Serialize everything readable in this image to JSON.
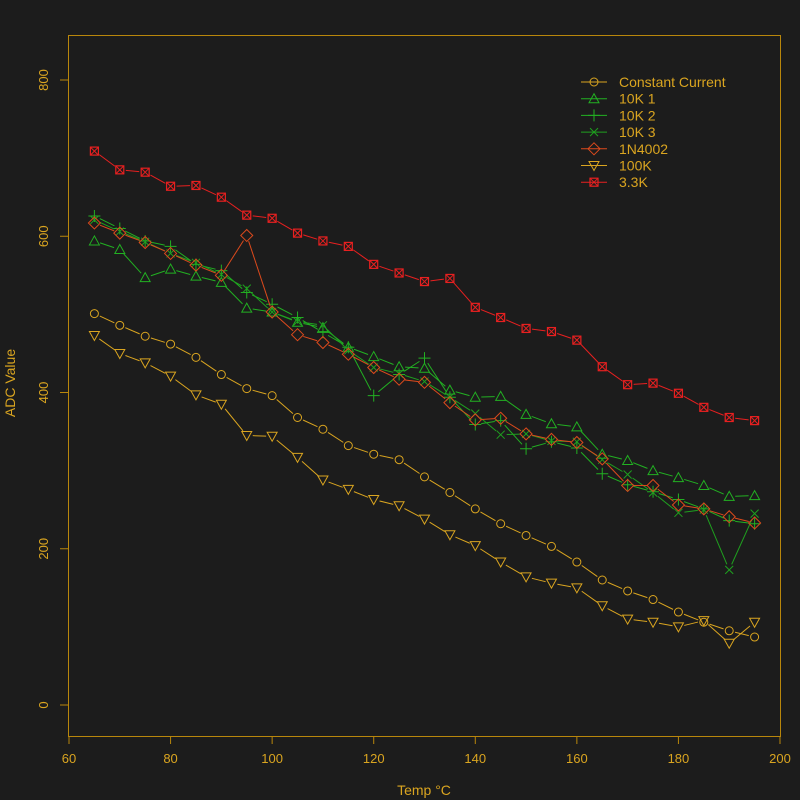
{
  "colors": {
    "background": "#1c1c1c",
    "axis": "#b8860b",
    "text": "#daa520"
  },
  "chart_data": {
    "type": "line",
    "title": "",
    "xlabel": "Temp °C",
    "ylabel": "ADC Value",
    "xlim": [
      60,
      200
    ],
    "ylim": [
      -40,
      860
    ],
    "xticks": [
      60,
      80,
      100,
      120,
      140,
      160,
      180,
      200
    ],
    "yticks": [
      0,
      200,
      400,
      600,
      800
    ],
    "xtick_labels": [
      "60",
      "80",
      "100",
      "120",
      "140",
      "160",
      "180",
      "200"
    ],
    "ytick_labels": [
      "0",
      "200",
      "400",
      "600",
      "800"
    ],
    "grid": false,
    "legend_position": "top-right",
    "x": [
      65,
      70,
      75,
      80,
      85,
      90,
      95,
      100,
      105,
      110,
      115,
      120,
      125,
      130,
      135,
      140,
      145,
      150,
      155,
      160,
      165,
      170,
      175,
      180,
      185,
      190,
      195
    ],
    "series": [
      {
        "name": "Constant Current",
        "marker": "circle",
        "color": "#daa520",
        "values": [
          501,
          486,
          472,
          462,
          445,
          423,
          405,
          396,
          368,
          353,
          332,
          321,
          314,
          292,
          272,
          251,
          232,
          217,
          203,
          183,
          160,
          146,
          135,
          119,
          106,
          95,
          87
        ]
      },
      {
        "name": "10K 1",
        "marker": "triangle-up",
        "color": "#22b022",
        "values": [
          594,
          583,
          547,
          558,
          549,
          541,
          508,
          503,
          490,
          483,
          458,
          446,
          433,
          431,
          403,
          394,
          395,
          372,
          360,
          356,
          321,
          313,
          300,
          291,
          281,
          267,
          268
        ]
      },
      {
        "name": "10K 2",
        "marker": "plus",
        "color": "#22b022",
        "values": [
          626,
          610,
          594,
          587,
          564,
          556,
          528,
          513,
          496,
          477,
          458,
          396,
          423,
          444,
          394,
          359,
          364,
          328,
          337,
          329,
          296,
          282,
          273,
          263,
          251,
          236,
          232
        ]
      },
      {
        "name": "10K 3",
        "marker": "cross",
        "color": "#1fa01f",
        "values": [
          621,
          606,
          593,
          578,
          566,
          551,
          533,
          503,
          491,
          486,
          454,
          432,
          424,
          414,
          394,
          373,
          346,
          347,
          338,
          337,
          314,
          295,
          272,
          246,
          250,
          173,
          245
        ]
      },
      {
        "name": "1N4002",
        "marker": "diamond",
        "color": "#dd4a1c",
        "values": [
          617,
          604,
          592,
          578,
          563,
          550,
          601,
          503,
          474,
          464,
          449,
          432,
          417,
          413,
          387,
          365,
          367,
          347,
          340,
          336,
          315,
          281,
          281,
          256,
          251,
          241,
          233
        ]
      },
      {
        "name": "100K",
        "marker": "triangle-down",
        "color": "#daa520",
        "values": [
          473,
          450,
          438,
          421,
          397,
          385,
          345,
          344,
          317,
          288,
          276,
          263,
          255,
          238,
          218,
          204,
          183,
          164,
          156,
          150,
          127,
          110,
          106,
          100,
          108,
          79,
          106
        ]
      },
      {
        "name": "3.3K",
        "marker": "boxed-x",
        "color": "#e82020",
        "values": [
          709,
          685,
          682,
          664,
          665,
          650,
          627,
          623,
          604,
          594,
          587,
          564,
          553,
          542,
          546,
          509,
          496,
          482,
          478,
          467,
          433,
          410,
          412,
          399,
          381,
          368,
          364
        ]
      }
    ]
  }
}
